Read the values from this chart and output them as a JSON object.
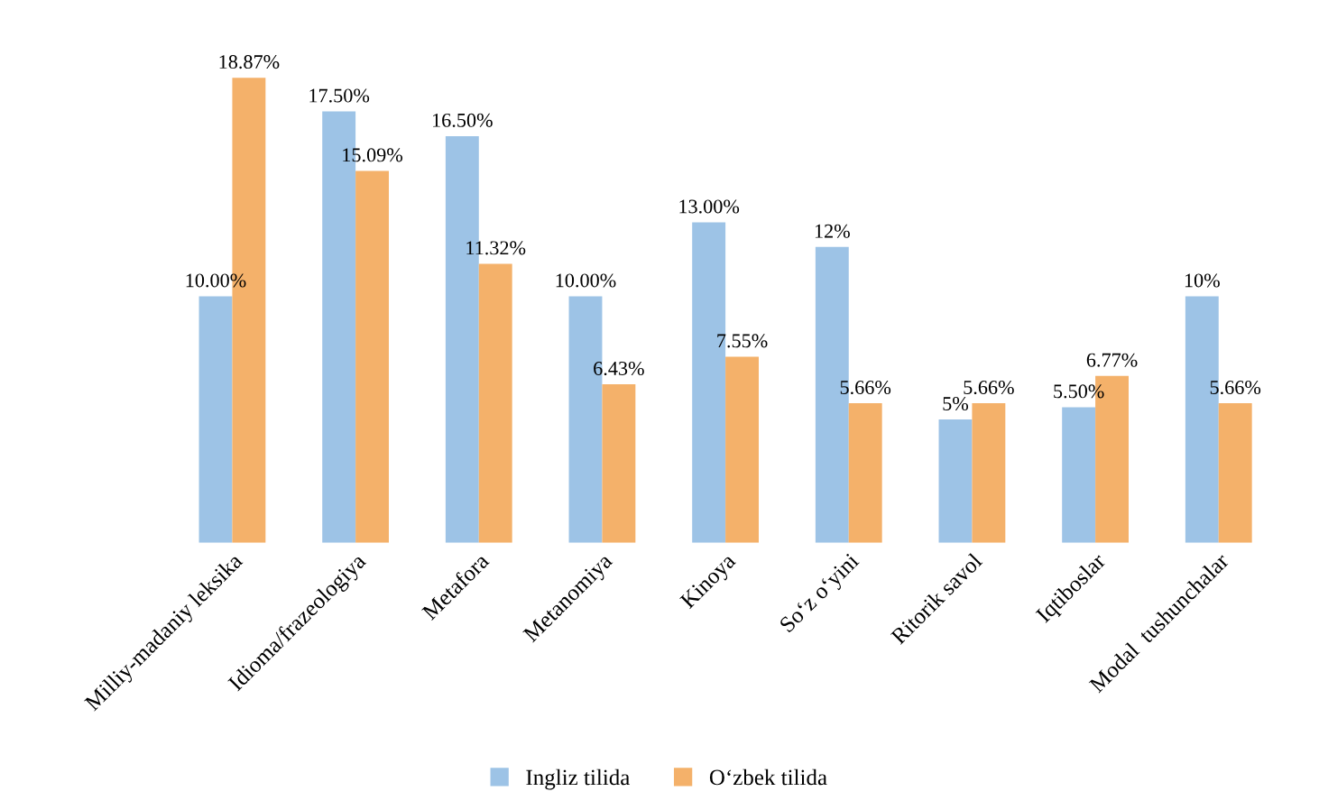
{
  "chart_data": {
    "type": "bar",
    "categories": [
      "Milliy-madaniy leksika",
      "Idioma/frazeologiya",
      "Metafora",
      "Metanomiya",
      "Kinoya",
      "So‘z o‘yini",
      "Ritorik savol",
      "Iqtiboslar",
      "Modal  tushunchalar"
    ],
    "series": [
      {
        "name": "Ingliz tilida",
        "color": "#9dc3e6",
        "values": [
          10.0,
          17.5,
          16.5,
          10.0,
          13.0,
          12,
          5,
          5.5,
          10
        ],
        "value_labels": [
          "10.00%",
          "17.50%",
          "16.50%",
          "10.00%",
          "13.00%",
          "12%",
          "5%",
          "5.50%",
          "10%"
        ]
      },
      {
        "name": "O‘zbek tilida",
        "color": "#f4b16a",
        "values": [
          18.87,
          15.09,
          11.32,
          6.43,
          7.55,
          5.66,
          5.66,
          6.77,
          5.66
        ],
        "value_labels": [
          "18.87%",
          "15.09%",
          "11.32%",
          "6.43%",
          "7.55%",
          "5.66%",
          "5.66%",
          "6.77%",
          "5.66%"
        ]
      }
    ],
    "legend": "bottom",
    "grid": false
  }
}
